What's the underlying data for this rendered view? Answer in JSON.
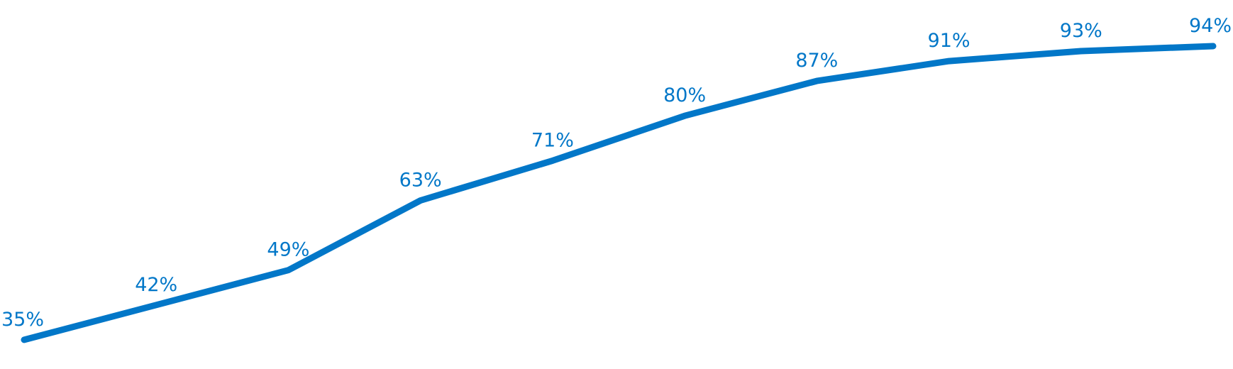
{
  "chart_data": {
    "type": "line",
    "title": "",
    "xlabel": "",
    "ylabel": "",
    "x": [
      1,
      2,
      3,
      4,
      5,
      6,
      7,
      8,
      9,
      10
    ],
    "series": [
      {
        "values": [
          35,
          42,
          49,
          63,
          71,
          80,
          87,
          91,
          93,
          94
        ],
        "color": "#0277C8",
        "labels": [
          "35%",
          "42%",
          "49%",
          "63%",
          "71%",
          "80%",
          "87%",
          "91%",
          "93%",
          "94%"
        ]
      }
    ],
    "ylim": [
      30,
      95
    ],
    "grid": false,
    "legend": "none"
  }
}
